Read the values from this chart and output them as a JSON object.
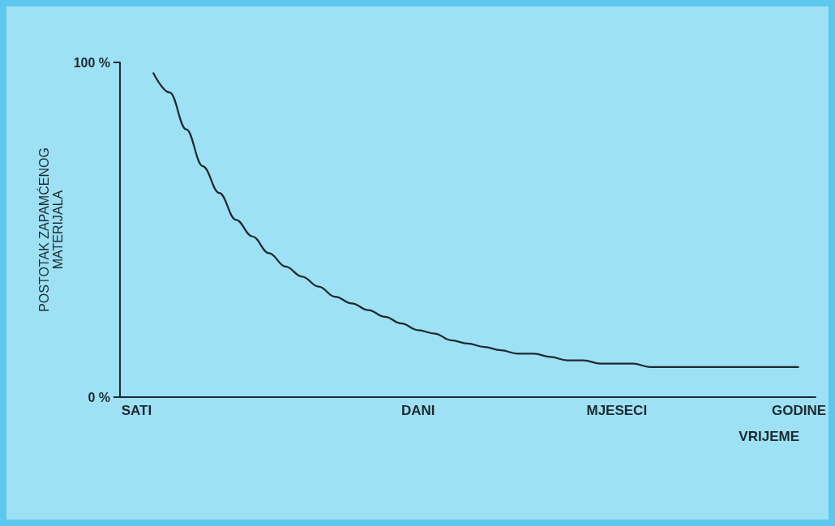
{
  "chart_data": {
    "type": "line",
    "xlabel": "VRIJEME",
    "ylabel": "POSTOTAK ZAPAMĆENOG\nMATERIJALA",
    "categories": [
      null,
      "SATI",
      null,
      null,
      null,
      null,
      null,
      null,
      null,
      null,
      null,
      null,
      null,
      null,
      null,
      null,
      null,
      null,
      "DANI",
      null,
      null,
      null,
      null,
      null,
      null,
      null,
      null,
      null,
      null,
      null,
      "MJESECI",
      null,
      null,
      null,
      null,
      null,
      null,
      null,
      null,
      null,
      null,
      "GODINE",
      null
    ],
    "series": [
      {
        "color": "#1c2a30",
        "values": [
          null,
          null,
          97,
          91,
          80,
          69,
          61,
          53,
          48,
          43,
          39,
          36,
          33,
          30,
          28,
          26,
          24,
          22,
          20,
          19,
          17,
          16,
          15,
          14,
          13,
          13,
          12,
          11,
          11,
          10,
          10,
          10,
          9,
          9,
          9,
          9,
          9,
          9,
          9,
          9,
          9,
          9,
          null
        ]
      }
    ],
    "ylim": [
      0,
      100
    ],
    "yticks": [
      {
        "value": 0,
        "label": "0 %"
      },
      {
        "value": 100,
        "label": "100 %"
      }
    ],
    "grid": false,
    "marker": "none",
    "line_style": "solid"
  }
}
